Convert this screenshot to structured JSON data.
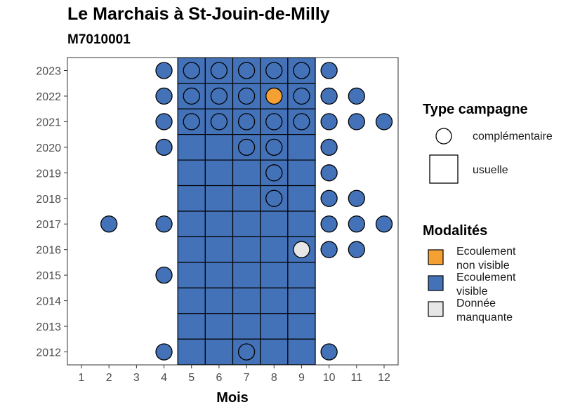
{
  "chart_data": {
    "type": "heatmap",
    "title": "Le Marchais à St-Jouin-de-Milly",
    "subtitle": "M7010001",
    "xlabel": "Mois",
    "ylabel": "",
    "x_ticks": [
      "1",
      "2",
      "3",
      "4",
      "5",
      "6",
      "7",
      "8",
      "9",
      "10",
      "11",
      "12"
    ],
    "y_ticks": [
      "2012",
      "2013",
      "2014",
      "2015",
      "2016",
      "2017",
      "2018",
      "2019",
      "2020",
      "2021",
      "2022",
      "2023"
    ],
    "xlim": [
      0.5,
      12.5
    ],
    "ylim": [
      2011.5,
      2023.5
    ],
    "colors": {
      "Ecoulement non visible": "#F5A032",
      "Ecoulement visible": "#4472B8",
      "Donnée manquante": "#E6E6E6"
    },
    "usuelle": [
      {
        "year": 2023,
        "months": [
          5,
          6,
          7,
          8,
          9
        ],
        "modalite": "Ecoulement visible"
      },
      {
        "year": 2022,
        "months": [
          5,
          6,
          7,
          8,
          9
        ],
        "modalite": "Ecoulement visible"
      },
      {
        "year": 2021,
        "months": [
          5,
          6,
          7,
          8,
          9
        ],
        "modalite": "Ecoulement visible"
      },
      {
        "year": 2020,
        "months": [
          5,
          6,
          7,
          8,
          9
        ],
        "modalite": "Ecoulement visible"
      },
      {
        "year": 2019,
        "months": [
          5,
          6,
          7,
          8,
          9
        ],
        "modalite": "Ecoulement visible"
      },
      {
        "year": 2018,
        "months": [
          5,
          6,
          7,
          8,
          9
        ],
        "modalite": "Ecoulement visible"
      },
      {
        "year": 2017,
        "months": [
          5,
          6,
          7,
          8,
          9
        ],
        "modalite": "Ecoulement visible"
      },
      {
        "year": 2016,
        "months": [
          5,
          6,
          7,
          8,
          9
        ],
        "modalite": "Ecoulement visible"
      },
      {
        "year": 2015,
        "months": [
          5,
          6,
          7,
          8,
          9
        ],
        "modalite": "Ecoulement visible"
      },
      {
        "year": 2014,
        "months": [
          5,
          6,
          7,
          8,
          9
        ],
        "modalite": "Ecoulement visible"
      },
      {
        "year": 2013,
        "months": [
          5,
          6,
          7,
          8,
          9
        ],
        "modalite": "Ecoulement visible"
      },
      {
        "year": 2012,
        "months": [
          5,
          6,
          7,
          8,
          9
        ],
        "modalite": "Ecoulement visible"
      }
    ],
    "complementaire": [
      {
        "year": 2023,
        "month": 4,
        "modalite": "Ecoulement visible"
      },
      {
        "year": 2023,
        "month": 5,
        "modalite": "Ecoulement visible"
      },
      {
        "year": 2023,
        "month": 6,
        "modalite": "Ecoulement visible"
      },
      {
        "year": 2023,
        "month": 7,
        "modalite": "Ecoulement visible"
      },
      {
        "year": 2023,
        "month": 8,
        "modalite": "Ecoulement visible"
      },
      {
        "year": 2023,
        "month": 9,
        "modalite": "Ecoulement visible"
      },
      {
        "year": 2023,
        "month": 10,
        "modalite": "Ecoulement visible"
      },
      {
        "year": 2022,
        "month": 4,
        "modalite": "Ecoulement visible"
      },
      {
        "year": 2022,
        "month": 5,
        "modalite": "Ecoulement visible"
      },
      {
        "year": 2022,
        "month": 6,
        "modalite": "Ecoulement visible"
      },
      {
        "year": 2022,
        "month": 7,
        "modalite": "Ecoulement visible"
      },
      {
        "year": 2022,
        "month": 8,
        "modalite": "Ecoulement non visible"
      },
      {
        "year": 2022,
        "month": 9,
        "modalite": "Ecoulement visible"
      },
      {
        "year": 2022,
        "month": 10,
        "modalite": "Ecoulement visible"
      },
      {
        "year": 2022,
        "month": 11,
        "modalite": "Ecoulement visible"
      },
      {
        "year": 2021,
        "month": 4,
        "modalite": "Ecoulement visible"
      },
      {
        "year": 2021,
        "month": 5,
        "modalite": "Ecoulement visible"
      },
      {
        "year": 2021,
        "month": 6,
        "modalite": "Ecoulement visible"
      },
      {
        "year": 2021,
        "month": 7,
        "modalite": "Ecoulement visible"
      },
      {
        "year": 2021,
        "month": 8,
        "modalite": "Ecoulement visible"
      },
      {
        "year": 2021,
        "month": 9,
        "modalite": "Ecoulement visible"
      },
      {
        "year": 2021,
        "month": 10,
        "modalite": "Ecoulement visible"
      },
      {
        "year": 2021,
        "month": 11,
        "modalite": "Ecoulement visible"
      },
      {
        "year": 2021,
        "month": 12,
        "modalite": "Ecoulement visible"
      },
      {
        "year": 2020,
        "month": 4,
        "modalite": "Ecoulement visible"
      },
      {
        "year": 2020,
        "month": 7,
        "modalite": "Ecoulement visible"
      },
      {
        "year": 2020,
        "month": 8,
        "modalite": "Ecoulement visible"
      },
      {
        "year": 2020,
        "month": 10,
        "modalite": "Ecoulement visible"
      },
      {
        "year": 2019,
        "month": 8,
        "modalite": "Ecoulement visible"
      },
      {
        "year": 2019,
        "month": 10,
        "modalite": "Ecoulement visible"
      },
      {
        "year": 2018,
        "month": 8,
        "modalite": "Ecoulement visible"
      },
      {
        "year": 2018,
        "month": 10,
        "modalite": "Ecoulement visible"
      },
      {
        "year": 2018,
        "month": 11,
        "modalite": "Ecoulement visible"
      },
      {
        "year": 2017,
        "month": 2,
        "modalite": "Ecoulement visible"
      },
      {
        "year": 2017,
        "month": 4,
        "modalite": "Ecoulement visible"
      },
      {
        "year": 2017,
        "month": 10,
        "modalite": "Ecoulement visible"
      },
      {
        "year": 2017,
        "month": 11,
        "modalite": "Ecoulement visible"
      },
      {
        "year": 2017,
        "month": 12,
        "modalite": "Ecoulement visible"
      },
      {
        "year": 2016,
        "month": 9,
        "modalite": "Donnée manquante"
      },
      {
        "year": 2016,
        "month": 10,
        "modalite": "Ecoulement visible"
      },
      {
        "year": 2016,
        "month": 11,
        "modalite": "Ecoulement visible"
      },
      {
        "year": 2015,
        "month": 4,
        "modalite": "Ecoulement visible"
      },
      {
        "year": 2012,
        "month": 4,
        "modalite": "Ecoulement visible"
      },
      {
        "year": 2012,
        "month": 7,
        "modalite": "Ecoulement visible"
      },
      {
        "year": 2012,
        "month": 10,
        "modalite": "Ecoulement visible"
      }
    ],
    "legend": {
      "type_title": "Type campagne",
      "type_items": [
        "complémentaire",
        "usuelle"
      ],
      "modalites_title": "Modalités",
      "modalites_items": [
        {
          "line1": "Ecoulement",
          "line2": "non visible",
          "key": "Ecoulement non visible"
        },
        {
          "line1": "Ecoulement",
          "line2": "visible",
          "key": "Ecoulement visible"
        },
        {
          "line1": "Donnée",
          "line2": "manquante",
          "key": "Donnée manquante"
        }
      ]
    }
  }
}
